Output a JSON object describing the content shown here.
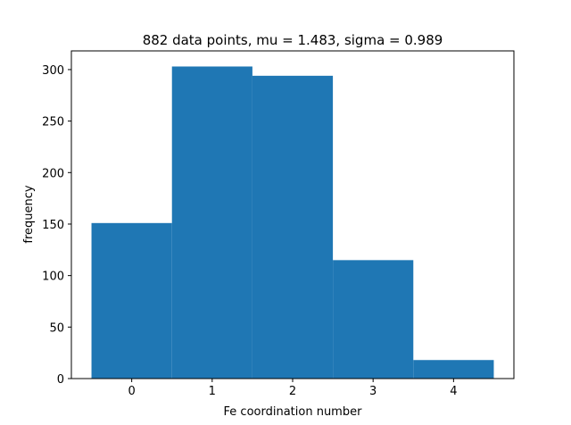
{
  "chart_data": {
    "type": "bar",
    "title": "882 data points, mu = 1.483, sigma = 0.989",
    "xlabel": "Fe coordination number",
    "ylabel": "frequency",
    "bins": [
      {
        "x0": -0.5,
        "x1": 0.5,
        "value": 151
      },
      {
        "x0": 0.5,
        "x1": 1.5,
        "value": 303
      },
      {
        "x0": 1.5,
        "x1": 2.5,
        "value": 294
      },
      {
        "x0": 2.5,
        "x1": 3.5,
        "value": 115
      },
      {
        "x0": 3.5,
        "x1": 4.5,
        "value": 18
      }
    ],
    "xlim": [
      -0.75,
      4.75
    ],
    "ylim": [
      0,
      318.15
    ],
    "xticks": [
      0,
      1,
      2,
      3,
      4
    ],
    "yticks": [
      0,
      50,
      100,
      150,
      200,
      250,
      300
    ],
    "bar_color": "#1f77b4",
    "grid": false,
    "legend": "none"
  }
}
